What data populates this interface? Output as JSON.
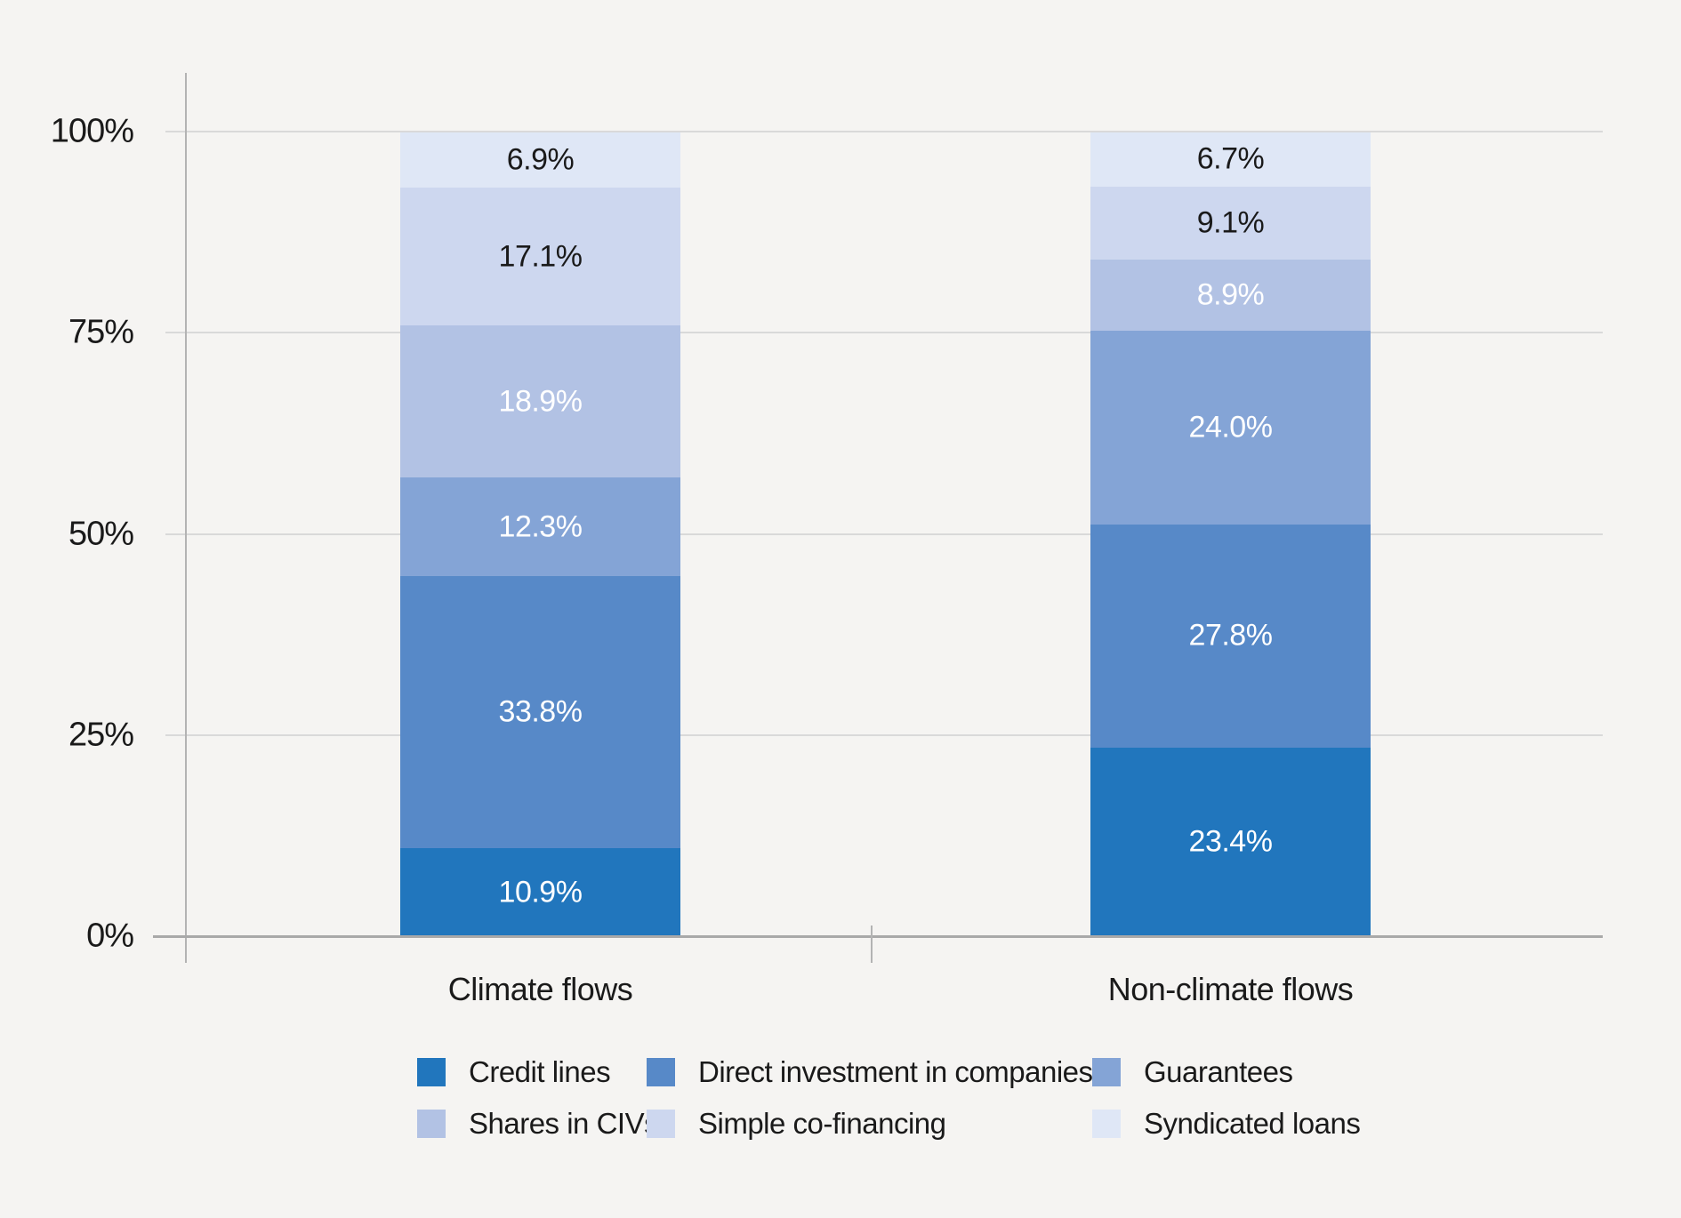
{
  "chart_data": {
    "type": "bar",
    "variant": "stacked-percentage-column",
    "title": "",
    "xlabel": "",
    "ylabel": "",
    "categories": [
      "Climate flows",
      "Non-climate flows"
    ],
    "series": [
      {
        "name": "Credit lines",
        "color": "#2176bd",
        "label_color": "#ffffff",
        "values": [
          10.9,
          23.4
        ],
        "labels": [
          "10.9%",
          "23.4%"
        ]
      },
      {
        "name": "Direct investment in companies",
        "color": "#5789c8",
        "label_color": "#ffffff",
        "values": [
          33.8,
          27.8
        ],
        "labels": [
          "33.8%",
          "27.8%"
        ]
      },
      {
        "name": "Guarantees",
        "color": "#84a4d6",
        "label_color": "#ffffff",
        "values": [
          12.3,
          24.0
        ],
        "labels": [
          "12.3%",
          "24.0%"
        ]
      },
      {
        "name": "Shares in CIVs",
        "color": "#b2c2e4",
        "label_color": "#ffffff",
        "values": [
          18.9,
          8.9
        ],
        "labels": [
          "18.9%",
          "8.9%"
        ]
      },
      {
        "name": "Simple co-financing",
        "color": "#cdd7ef",
        "label_color": "#1a1a1a",
        "values": [
          17.1,
          9.1
        ],
        "labels": [
          "17.1%",
          "9.1%"
        ]
      },
      {
        "name": "Syndicated loans",
        "color": "#dfe7f6",
        "label_color": "#1a1a1a",
        "values": [
          6.9,
          6.7
        ],
        "labels": [
          "6.9%",
          "6.7%"
        ]
      }
    ],
    "y_axis": {
      "ticks": [
        {
          "value": 0,
          "label": "0%"
        },
        {
          "value": 25,
          "label": "25%"
        },
        {
          "value": 50,
          "label": "50%"
        },
        {
          "value": 75,
          "label": "75%"
        },
        {
          "value": 100,
          "label": "100%"
        }
      ],
      "ylim": [
        0,
        100
      ]
    },
    "grid": true,
    "legend_position": "bottom",
    "colors": {
      "background": "#f5f4f2",
      "gridline": "#d9d9d9",
      "axis_line": "#b3b3b3",
      "baseline": "#a9a9a9",
      "text": "#1a1a1a"
    }
  }
}
